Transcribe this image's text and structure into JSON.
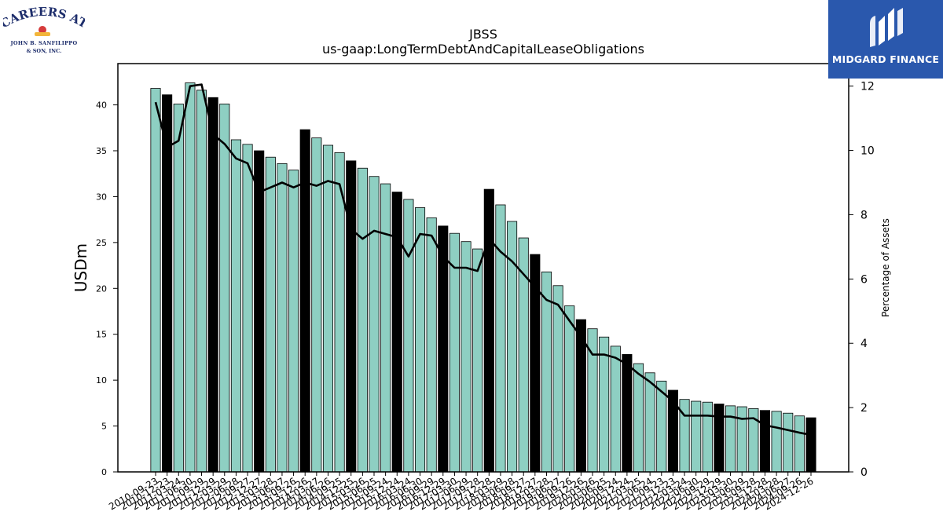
{
  "branding": {
    "left_logo": {
      "line1": "CAREERS AT",
      "line2": "JOHN B. SANFILIPPO",
      "line3": "& SON, INC."
    },
    "right_logo": {
      "text": "MIDGARD FINANCE"
    }
  },
  "colors": {
    "bar": "#8ecfc2",
    "bar_highlight": "#000000",
    "line": "#000000"
  },
  "chart_data": {
    "type": "bar",
    "title": "JBSS",
    "subtitle": "us-gaap:LongTermDebtAndCapitalLeaseObligations",
    "ylabel": "USDm",
    "y2label": "Percentage of Assets",
    "ylim": [
      0,
      44.5
    ],
    "y2lim": [
      0,
      12.7
    ],
    "yticks": [
      0,
      5,
      10,
      15,
      20,
      25,
      30,
      35,
      40
    ],
    "y2ticks": [
      0,
      2,
      4,
      6,
      8,
      10,
      12
    ],
    "categories": [
      "2010-09-23",
      "2010-12-23",
      "2011-03-24",
      "2011-06-30",
      "2011-09-29",
      "2011-12-29",
      "2012-03-29",
      "2012-06-28",
      "2012-09-27",
      "2012-12-27",
      "2013-03-28",
      "2013-06-27",
      "2013-09-26",
      "2013-12-26",
      "2014-03-27",
      "2014-06-26",
      "2014-09-25",
      "2014-12-25",
      "2015-03-26",
      "2015-06-25",
      "2015-09-24",
      "2015-12-24",
      "2016-03-24",
      "2016-06-30",
      "2016-09-29",
      "2016-12-29",
      "2017-03-30",
      "2017-06-29",
      "2017-09-28",
      "2017-12-28",
      "2018-03-29",
      "2018-06-28",
      "2018-09-27",
      "2018-12-27",
      "2019-03-28",
      "2019-06-27",
      "2019-09-26",
      "2019-12-26",
      "2020-03-26",
      "2020-06-25",
      "2020-09-24",
      "2020-12-24",
      "2021-03-25",
      "2021-06-24",
      "2021-09-23",
      "2021-12-23",
      "2022-03-24",
      "2022-06-30",
      "2022-09-29",
      "2022-12-29",
      "2023-03-30",
      "2023-06-29",
      "2023-09-28",
      "2023-12-28",
      "2024-03-28",
      "2024-06-27",
      "2024-09-26",
      "2024-12-26"
    ],
    "values": [
      41.8,
      41.1,
      40.1,
      42.4,
      41.6,
      40.8,
      40.1,
      36.2,
      35.7,
      35.0,
      34.3,
      33.6,
      32.9,
      37.3,
      36.4,
      35.6,
      34.8,
      33.9,
      33.1,
      32.2,
      31.4,
      30.5,
      29.7,
      28.8,
      27.7,
      26.8,
      26.0,
      25.1,
      24.3,
      30.8,
      29.1,
      27.3,
      25.5,
      23.7,
      21.8,
      20.3,
      18.1,
      16.6,
      15.6,
      14.7,
      13.7,
      12.8,
      11.8,
      10.8,
      9.9,
      8.9,
      7.9,
      7.7,
      7.6,
      7.4,
      7.2,
      7.1,
      6.9,
      6.7,
      6.6,
      6.4,
      6.1,
      5.9
    ],
    "highlight": [
      false,
      true,
      false,
      false,
      false,
      true,
      false,
      false,
      false,
      true,
      false,
      false,
      false,
      true,
      false,
      false,
      false,
      true,
      false,
      false,
      false,
      true,
      false,
      false,
      false,
      true,
      false,
      false,
      false,
      true,
      false,
      false,
      false,
      true,
      false,
      false,
      false,
      true,
      false,
      false,
      false,
      true,
      false,
      false,
      false,
      true,
      false,
      false,
      false,
      true,
      false,
      false,
      false,
      true,
      false,
      false,
      false,
      true
    ],
    "pct_of_assets": [
      11.5,
      10.1,
      10.3,
      12.0,
      12.05,
      10.5,
      10.2,
      9.75,
      9.6,
      8.7,
      8.85,
      9.0,
      8.85,
      9.0,
      8.9,
      9.05,
      8.95,
      7.55,
      7.25,
      7.5,
      7.4,
      7.3,
      6.7,
      7.4,
      7.35,
      6.7,
      6.35,
      6.35,
      6.25,
      7.25,
      6.85,
      6.55,
      6.15,
      5.75,
      5.35,
      5.2,
      4.7,
      4.2,
      3.65,
      3.65,
      3.55,
      3.35,
      3.05,
      2.8,
      2.5,
      2.2,
      1.75,
      1.75,
      1.75,
      1.72,
      1.72,
      1.65,
      1.67,
      1.45,
      1.38,
      1.3,
      1.22,
      1.15
    ]
  }
}
